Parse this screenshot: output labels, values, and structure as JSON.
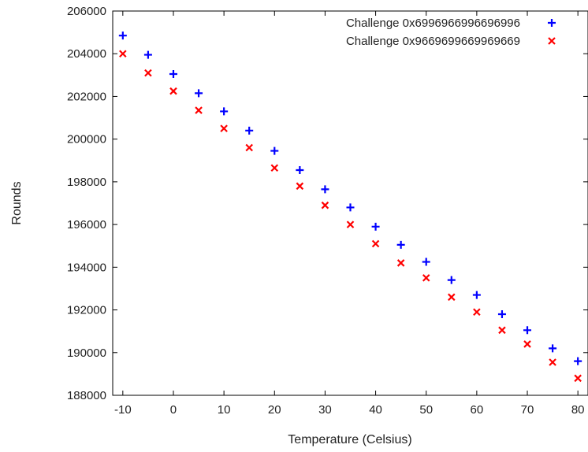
{
  "chart_data": {
    "type": "scatter",
    "xlabel": "Temperature (Celsius)",
    "ylabel": "Rounds",
    "xlim": [
      -12,
      82
    ],
    "ylim": [
      188000,
      206000
    ],
    "x_ticks": [
      -10,
      0,
      10,
      20,
      30,
      40,
      50,
      60,
      70,
      80
    ],
    "x_tick_labels": [
      "-10",
      "0",
      "10",
      "20",
      "30",
      "40",
      "50",
      "60",
      "70",
      "80"
    ],
    "y_ticks": [
      188000,
      190000,
      192000,
      194000,
      196000,
      198000,
      200000,
      202000,
      204000,
      206000
    ],
    "y_tick_labels": [
      "188000",
      "190000",
      "192000",
      "194000",
      "196000",
      "198000",
      "200000",
      "202000",
      "204000",
      "206000"
    ],
    "grid": false,
    "legend_position": "top-right",
    "x": [
      -10,
      -5,
      0,
      5,
      10,
      15,
      20,
      25,
      30,
      35,
      40,
      45,
      50,
      55,
      60,
      65,
      70,
      75,
      80
    ],
    "series": [
      {
        "name": "Challenge 0x6996966996696996",
        "marker": "plus",
        "color": "#0000ff",
        "values": [
          204850,
          203950,
          203050,
          202150,
          201300,
          200400,
          199450,
          198550,
          197650,
          196800,
          195900,
          195050,
          194250,
          193400,
          192700,
          191800,
          191050,
          190200,
          189600
        ]
      },
      {
        "name": "Challenge 0x9669699669969669",
        "marker": "cross",
        "color": "#ff0000",
        "values": [
          204000,
          203100,
          202250,
          201350,
          200500,
          199600,
          198650,
          197800,
          196900,
          196000,
          195100,
          194200,
          193500,
          192600,
          191900,
          191050,
          190400,
          189550,
          188800
        ]
      }
    ]
  }
}
